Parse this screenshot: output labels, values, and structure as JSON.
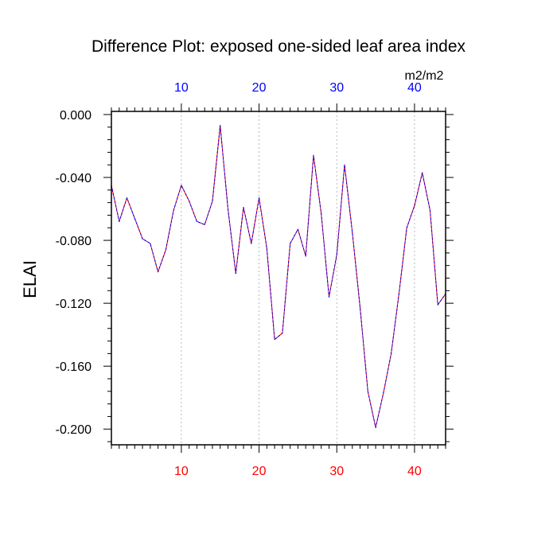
{
  "chart_data": {
    "type": "line",
    "title": "Difference Plot: exposed one-sided leaf area index",
    "units": "m2/m2",
    "ylabel": "ELAI",
    "xlabel": "",
    "xlim": [
      1,
      44
    ],
    "ylim": [
      -0.21,
      0.002
    ],
    "grid": "vertical dashed at major x ticks",
    "x_major_ticks": [
      10,
      20,
      30,
      40
    ],
    "x_minor_step": 1,
    "y_major_ticks": [
      0.0,
      -0.04,
      -0.08,
      -0.12,
      -0.16,
      -0.2
    ],
    "y_tick_labels": [
      "0.000",
      "-0.040",
      "-0.080",
      "-0.120",
      "-0.160",
      "-0.200"
    ],
    "y_minor_step": 0.008,
    "colors": {
      "bottom_tick_labels": "#ff0000",
      "top_tick_labels": "#0000ff",
      "series_primary": "#ff0000",
      "series_overlay": "#0000ff",
      "grid": "#aaaaaa",
      "axes": "#000000"
    },
    "series": [
      {
        "name": "ELAI difference",
        "x": [
          1,
          2,
          3,
          4,
          5,
          6,
          7,
          8,
          9,
          10,
          11,
          12,
          13,
          14,
          15,
          16,
          17,
          18,
          19,
          20,
          21,
          22,
          23,
          24,
          25,
          26,
          27,
          28,
          29,
          30,
          31,
          32,
          33,
          34,
          35,
          36,
          37,
          38,
          39,
          40,
          41,
          42,
          43,
          44
        ],
        "values": [
          -0.045,
          -0.068,
          -0.053,
          -0.066,
          -0.079,
          -0.082,
          -0.1,
          -0.086,
          -0.061,
          -0.045,
          -0.055,
          -0.068,
          -0.07,
          -0.055,
          -0.007,
          -0.06,
          -0.101,
          -0.059,
          -0.082,
          -0.053,
          -0.085,
          -0.143,
          -0.139,
          -0.082,
          -0.073,
          -0.09,
          -0.026,
          -0.063,
          -0.116,
          -0.089,
          -0.032,
          -0.075,
          -0.123,
          -0.176,
          -0.199,
          -0.177,
          -0.152,
          -0.114,
          -0.072,
          -0.058,
          -0.037,
          -0.061,
          -0.121,
          -0.114
        ]
      }
    ]
  }
}
